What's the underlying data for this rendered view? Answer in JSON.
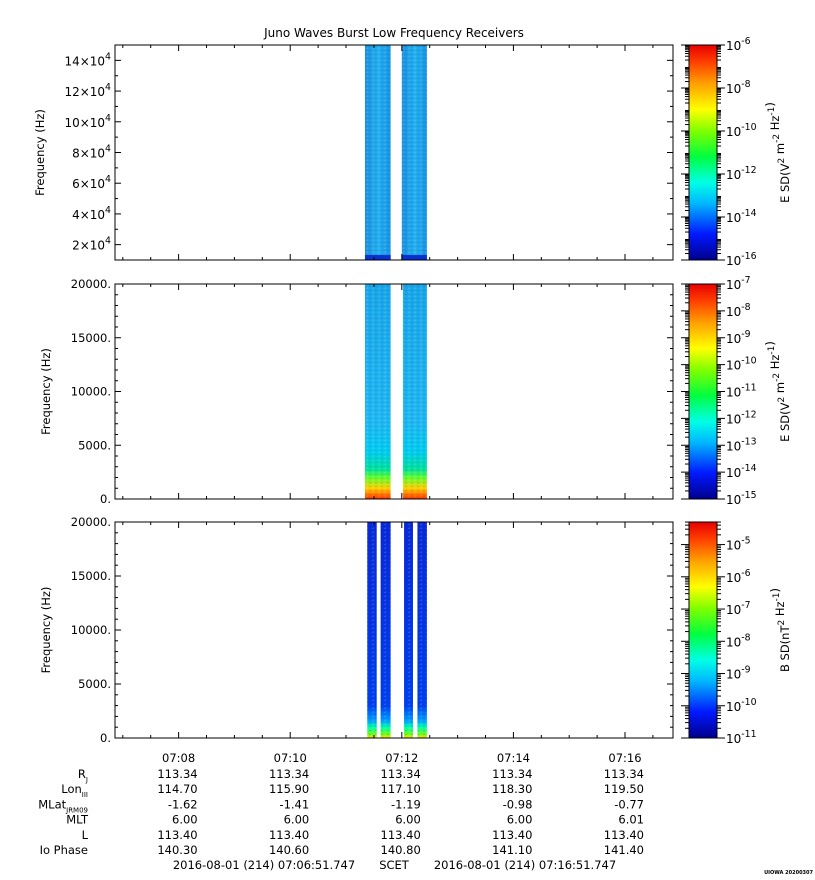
{
  "title": "Juno Waves Burst Low Frequency Receivers",
  "watermark": "UIOWA 20200307",
  "time_axis": {
    "ticks": [
      "07:08",
      "07:10",
      "07:12",
      "07:14",
      "07:16"
    ],
    "tick_minutes": [
      8,
      10,
      12,
      14,
      16
    ],
    "start_minute": 6.86,
    "end_minute": 16.86
  },
  "chart_data": [
    {
      "type": "heatmap",
      "id": "panel1",
      "ylabel": "Frequency (Hz)",
      "y_ticks": [
        {
          "mant": "2",
          "exp": "4",
          "value": 20000
        },
        {
          "mant": "4",
          "exp": "4",
          "value": 40000
        },
        {
          "mant": "6",
          "exp": "4",
          "value": 60000
        },
        {
          "mant": "8",
          "exp": "4",
          "value": 80000
        },
        {
          "mant": "10",
          "exp": "4",
          "value": 100000
        },
        {
          "mant": "12",
          "exp": "4",
          "value": 120000
        },
        {
          "mant": "14",
          "exp": "4",
          "value": 140000
        }
      ],
      "ylim": [
        10000,
        150000
      ],
      "colorbar": {
        "label_base": "E SD(V",
        "label_units": "2 m-2 Hz-1",
        "ticks": [
          {
            "exp": "-6",
            "value": -6
          },
          {
            "exp": "-8",
            "value": -8
          },
          {
            "exp": "-10",
            "value": -10
          },
          {
            "exp": "-12",
            "value": -12
          },
          {
            "exp": "-14",
            "value": -14
          },
          {
            "exp": "-16",
            "value": -16
          }
        ],
        "range": [
          -16,
          -6
        ],
        "scale": "log"
      },
      "bursts": [
        {
          "start_minute": 11.34,
          "end_minute": 11.8
        },
        {
          "start_minute": 12.0,
          "end_minute": 12.45
        }
      ]
    },
    {
      "type": "heatmap",
      "id": "panel2",
      "ylabel": "Frequency (Hz)",
      "y_ticks": [
        {
          "label": "0.",
          "value": 0
        },
        {
          "label": "5000.",
          "value": 5000
        },
        {
          "label": "10000.",
          "value": 10000
        },
        {
          "label": "15000.",
          "value": 15000
        },
        {
          "label": "20000.",
          "value": 20000
        }
      ],
      "ylim": [
        0,
        20000
      ],
      "colorbar": {
        "label_base": "E SD(V",
        "label_units": "2 m-2 Hz-1",
        "ticks": [
          {
            "exp": "-7",
            "value": -7
          },
          {
            "exp": "-8",
            "value": -8
          },
          {
            "exp": "-9",
            "value": -9
          },
          {
            "exp": "-10",
            "value": -10
          },
          {
            "exp": "-11",
            "value": -11
          },
          {
            "exp": "-12",
            "value": -12
          },
          {
            "exp": "-13",
            "value": -13
          },
          {
            "exp": "-14",
            "value": -14
          },
          {
            "exp": "-15",
            "value": -15
          }
        ],
        "range": [
          -15,
          -7
        ],
        "scale": "log"
      },
      "bursts": [
        {
          "start_minute": 11.34,
          "end_minute": 11.8
        },
        {
          "start_minute": 12.02,
          "end_minute": 12.45
        }
      ]
    },
    {
      "type": "heatmap",
      "id": "panel3",
      "ylabel": "Frequency (Hz)",
      "y_ticks": [
        {
          "label": "0.",
          "value": 0
        },
        {
          "label": "5000.",
          "value": 5000
        },
        {
          "label": "10000.",
          "value": 10000
        },
        {
          "label": "15000.",
          "value": 15000
        },
        {
          "label": "20000.",
          "value": 20000
        }
      ],
      "ylim": [
        0,
        20000
      ],
      "colorbar": {
        "label_base": "B SD(nT",
        "label_units": "2 Hz-1",
        "ticks": [
          {
            "exp": "-5",
            "value": -5
          },
          {
            "exp": "-6",
            "value": -6
          },
          {
            "exp": "-7",
            "value": -7
          },
          {
            "exp": "-8",
            "value": -8
          },
          {
            "exp": "-9",
            "value": -9
          },
          {
            "exp": "-10",
            "value": -10
          },
          {
            "exp": "-11",
            "value": -11
          }
        ],
        "range": [
          -11,
          -4.3
        ],
        "scale": "log"
      },
      "bursts": [
        {
          "start_minute": 11.38,
          "end_minute": 11.55
        },
        {
          "start_minute": 11.62,
          "end_minute": 11.8
        },
        {
          "start_minute": 12.04,
          "end_minute": 12.2
        },
        {
          "start_minute": 12.28,
          "end_minute": 12.45
        }
      ]
    }
  ],
  "ephemeris": {
    "labels": [
      {
        "main": "R",
        "sub": "J"
      },
      {
        "main": "Lon",
        "sub": "III"
      },
      {
        "main": "MLat",
        "sub": "JRM09"
      },
      {
        "main": "MLT",
        "sub": ""
      },
      {
        "main": "L",
        "sub": ""
      },
      {
        "main": "Io Phase",
        "sub": ""
      }
    ],
    "rows": [
      [
        "113.34",
        "113.34",
        "113.34",
        "113.34",
        "113.34"
      ],
      [
        "114.70",
        "115.90",
        "117.10",
        "118.30",
        "119.50"
      ],
      [
        "-1.62",
        "-1.41",
        "-1.19",
        "-0.98",
        "-0.77"
      ],
      [
        "6.00",
        "6.00",
        "6.00",
        "6.00",
        "6.01"
      ],
      [
        "113.40",
        "113.40",
        "113.40",
        "113.40",
        "113.40"
      ],
      [
        "140.30",
        "140.60",
        "140.80",
        "141.10",
        "141.40"
      ]
    ]
  },
  "footer": {
    "start": "2016-08-01 (214) 07:06:51.747",
    "label": "SCET",
    "end": "2016-08-01 (214) 07:16:51.747"
  }
}
